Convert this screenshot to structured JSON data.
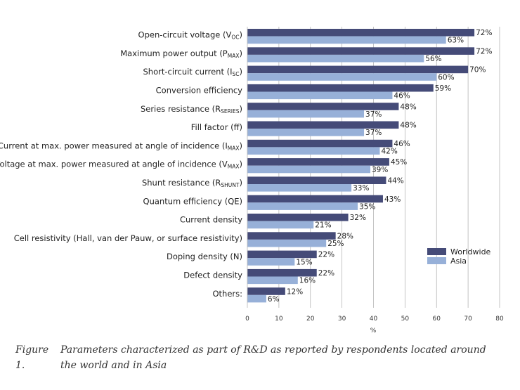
{
  "chart_data": {
    "type": "bar",
    "orientation": "horizontal",
    "categories": [
      {
        "text": "Open-circuit voltage (V",
        "sub": "OC",
        "after": ")"
      },
      {
        "text": "Maximum power output (P",
        "sub": "MAX",
        "after": ")"
      },
      {
        "text": "Short-circuit current (I",
        "sub": "SC",
        "after": ")"
      },
      {
        "text": "Conversion efficiency",
        "sub": "",
        "after": ""
      },
      {
        "text": "Series resistance (R",
        "sub": "SERIES",
        "after": ")"
      },
      {
        "text": "Fill factor (ff)",
        "sub": "",
        "after": ""
      },
      {
        "text": "Current at max. power measured at angle of incidence (I",
        "sub": "MAX",
        "after": ")"
      },
      {
        "text": "Voltage at max. power measured at angle of incidence (V",
        "sub": "MAX",
        "after": ")"
      },
      {
        "text": "Shunt resistance (R",
        "sub": "SHUNT",
        "after": ")"
      },
      {
        "text": "Quantum efficiency (QE)",
        "sub": "",
        "after": ""
      },
      {
        "text": "Current density",
        "sub": "",
        "after": ""
      },
      {
        "text": "Cell resistivity (Hall, van der Pauw, or surface resistivity)",
        "sub": "",
        "after": ""
      },
      {
        "text": "Doping density (N)",
        "sub": "",
        "after": ""
      },
      {
        "text": "Defect density",
        "sub": "",
        "after": ""
      },
      {
        "text": "Others:",
        "sub": "",
        "after": ""
      }
    ],
    "series": [
      {
        "name": "Worldwide",
        "color": "#454b78",
        "values": [
          72,
          72,
          70,
          59,
          48,
          48,
          46,
          45,
          44,
          43,
          32,
          28,
          22,
          22,
          12
        ]
      },
      {
        "name": "Asia",
        "color": "#97b0d8",
        "values": [
          63,
          56,
          60,
          46,
          37,
          37,
          42,
          39,
          33,
          35,
          21,
          25,
          15,
          16,
          6
        ]
      }
    ],
    "value_suffix": "%",
    "xlim": [
      0,
      80
    ],
    "xticks": [
      0,
      10,
      20,
      30,
      40,
      50,
      60,
      70,
      80
    ],
    "xlabel": "%",
    "grid": "vertical",
    "legend_position": "lower-right"
  },
  "caption": {
    "number": "Figure 1.",
    "text": "Parameters characterized as part of R&D as reported by respondents located around the world and in Asia"
  }
}
